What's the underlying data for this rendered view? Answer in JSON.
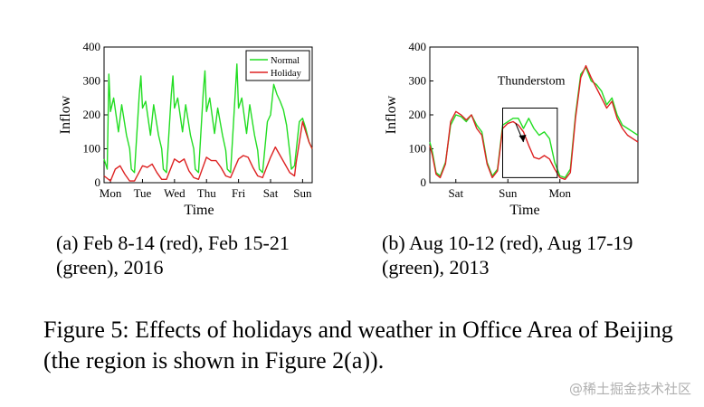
{
  "chart_data": [
    {
      "type": "line",
      "ylabel": "Inflow",
      "xlabel": "Time",
      "ylim": [
        0,
        400
      ],
      "yticks": [
        0,
        100,
        200,
        300,
        400
      ],
      "xticks": [
        "Mon",
        "Tue",
        "Wed",
        "Thu",
        "Fri",
        "Sat",
        "Sun"
      ],
      "legend": [
        "Normal",
        "Holiday"
      ],
      "series": [
        {
          "name": "Normal",
          "color": "#22dd22",
          "x": [
            0,
            0.1,
            0.15,
            0.2,
            0.3,
            0.45,
            0.55,
            0.7,
            0.8,
            0.85,
            0.95,
            1.1,
            1.15,
            1.2,
            1.3,
            1.45,
            1.55,
            1.7,
            1.8,
            1.85,
            1.95,
            2.1,
            2.15,
            2.2,
            2.3,
            2.45,
            2.55,
            2.7,
            2.8,
            2.85,
            2.95,
            3.1,
            3.15,
            3.2,
            3.3,
            3.45,
            3.55,
            3.7,
            3.8,
            3.85,
            3.95,
            4.1,
            4.15,
            4.2,
            4.3,
            4.45,
            4.55,
            4.7,
            4.8,
            4.85,
            4.95,
            5.1,
            5.2,
            5.3,
            5.4,
            5.5,
            5.6,
            5.7,
            5.8,
            5.85,
            5.95,
            6.1,
            6.2,
            6.3,
            6.4,
            6.5
          ],
          "values": [
            70,
            40,
            320,
            210,
            250,
            150,
            230,
            140,
            100,
            40,
            30,
            260,
            315,
            220,
            240,
            140,
            230,
            140,
            100,
            40,
            30,
            260,
            315,
            220,
            250,
            150,
            230,
            140,
            100,
            40,
            30,
            270,
            330,
            210,
            250,
            145,
            220,
            140,
            95,
            40,
            30,
            270,
            350,
            220,
            250,
            145,
            230,
            140,
            95,
            40,
            30,
            180,
            200,
            290,
            260,
            240,
            215,
            170,
            90,
            40,
            50,
            180,
            190,
            160,
            120,
            100
          ]
        },
        {
          "name": "Holiday",
          "color": "#dd2222",
          "x": [
            0,
            0.2,
            0.35,
            0.5,
            0.65,
            0.8,
            0.95,
            1.2,
            1.35,
            1.5,
            1.65,
            1.8,
            1.95,
            2.2,
            2.35,
            2.5,
            2.65,
            2.8,
            2.95,
            3.2,
            3.35,
            3.5,
            3.65,
            3.8,
            3.95,
            4.2,
            4.35,
            4.5,
            4.65,
            4.8,
            4.95,
            5.2,
            5.35,
            5.5,
            5.65,
            5.8,
            5.95,
            6.0,
            6.2,
            6.3,
            6.4,
            6.5
          ],
          "values": [
            20,
            5,
            40,
            50,
            25,
            5,
            5,
            50,
            45,
            55,
            30,
            10,
            10,
            70,
            60,
            70,
            35,
            15,
            10,
            75,
            65,
            65,
            45,
            20,
            15,
            70,
            80,
            75,
            45,
            20,
            15,
            75,
            105,
            80,
            55,
            30,
            20,
            60,
            180,
            150,
            120,
            100
          ]
        }
      ]
    },
    {
      "type": "line",
      "ylabel": "Inflow",
      "xlabel": "Time",
      "ylim": [
        0,
        400
      ],
      "yticks": [
        0,
        100,
        200,
        300,
        400
      ],
      "xticks": [
        "Sat",
        "Sun",
        "Mon"
      ],
      "annotation": "Thunderstom",
      "series": [
        {
          "name": "Aug 17-19",
          "color": "#22dd22",
          "x": [
            0,
            0.05,
            0.12,
            0.2,
            0.3,
            0.4,
            0.5,
            0.6,
            0.7,
            0.8,
            0.9,
            1.0,
            1.1,
            1.2,
            1.3,
            1.4,
            1.5,
            1.6,
            1.7,
            1.8,
            1.9,
            2.0,
            2.1,
            2.2,
            2.3,
            2.4,
            2.5,
            2.6,
            2.7,
            2.8,
            2.9,
            3.0,
            3.1,
            3.2,
            3.3,
            3.4,
            3.5,
            3.6,
            3.7,
            3.8,
            3.9,
            4.0
          ],
          "values": [
            120,
            90,
            30,
            20,
            60,
            170,
            200,
            195,
            180,
            200,
            170,
            150,
            60,
            20,
            40,
            170,
            180,
            190,
            190,
            160,
            190,
            160,
            140,
            150,
            130,
            60,
            20,
            15,
            40,
            200,
            320,
            340,
            300,
            290,
            270,
            230,
            250,
            200,
            170,
            160,
            150,
            140
          ]
        },
        {
          "name": "Aug 10-12",
          "color": "#dd2222",
          "x": [
            0,
            0.05,
            0.12,
            0.2,
            0.3,
            0.4,
            0.5,
            0.6,
            0.7,
            0.8,
            0.9,
            1.0,
            1.1,
            1.2,
            1.3,
            1.4,
            1.5,
            1.6,
            1.7,
            1.8,
            1.9,
            2.0,
            2.1,
            2.2,
            2.3,
            2.4,
            2.5,
            2.6,
            2.7,
            2.8,
            2.9,
            3.0,
            3.1,
            3.2,
            3.3,
            3.4,
            3.5,
            3.6,
            3.7,
            3.8,
            3.9,
            4.0
          ],
          "values": [
            110,
            80,
            25,
            15,
            55,
            180,
            210,
            200,
            185,
            200,
            160,
            140,
            55,
            15,
            35,
            160,
            175,
            180,
            170,
            150,
            110,
            75,
            70,
            80,
            70,
            40,
            15,
            10,
            30,
            190,
            310,
            345,
            310,
            280,
            250,
            220,
            240,
            190,
            160,
            140,
            130,
            120
          ]
        }
      ]
    }
  ],
  "captions": {
    "subcap_a": "(a) Feb 8-14 (red), Feb 15-21 (green), 2016",
    "subcap_b": "(b) Aug 10-12 (red), Aug 17-19 (green), 2013",
    "figure": "Figure 5: Effects of holidays and weather in Office Area of Beijing (the region is shown in Figure 2(a))."
  },
  "watermark": "@稀土掘金技术社区"
}
